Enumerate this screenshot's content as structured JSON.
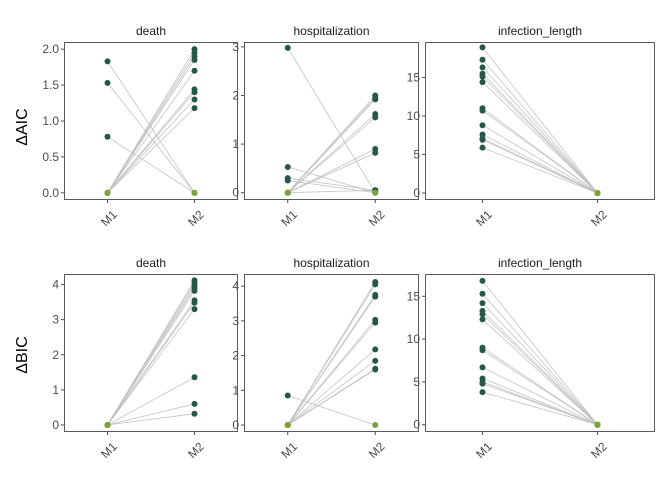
{
  "colors": {
    "selected": "#26574a",
    "zero": "#7aa43a",
    "line": "#bfbfbf",
    "panel_border": "#595959",
    "axis_text": "#4d4d4d"
  },
  "chart_data": [
    {
      "type": "scatter",
      "title": "death",
      "ylabel": "ΔAIC",
      "categories": [
        "M1",
        "M2"
      ],
      "ylim": [
        -0.1,
        2.1
      ],
      "yticks": [
        0.0,
        0.5,
        1.0,
        1.5,
        2.0
      ],
      "ytick_labels": [
        "0.0",
        "0.5",
        "1.0",
        "1.5",
        "2.0"
      ],
      "grid": false,
      "pairs": [
        [
          1.83,
          0
        ],
        [
          1.53,
          0
        ],
        [
          0.78,
          0
        ],
        [
          0,
          2.0
        ],
        [
          0,
          1.95
        ],
        [
          0,
          1.9
        ],
        [
          0,
          1.85
        ],
        [
          0,
          1.7
        ],
        [
          0,
          1.44
        ],
        [
          0,
          1.4
        ],
        [
          0,
          1.3
        ],
        [
          0,
          1.18
        ]
      ]
    },
    {
      "type": "scatter",
      "title": "hospitalization",
      "ylabel": "",
      "categories": [
        "M1",
        "M2"
      ],
      "ylim": [
        -0.15,
        3.1
      ],
      "yticks": [
        0,
        1,
        2,
        3
      ],
      "ytick_labels": [
        "0",
        "1",
        "2",
        "3"
      ],
      "grid": false,
      "pairs": [
        [
          2.98,
          0
        ],
        [
          0.53,
          0
        ],
        [
          0.3,
          0.05
        ],
        [
          0.25,
          0
        ],
        [
          0,
          2.0
        ],
        [
          0,
          1.95
        ],
        [
          0,
          1.92
        ],
        [
          0,
          1.62
        ],
        [
          0,
          1.55
        ],
        [
          0,
          0.9
        ],
        [
          0,
          0.82
        ],
        [
          0,
          0.05
        ]
      ]
    },
    {
      "type": "scatter",
      "title": "infection_length",
      "ylabel": "",
      "categories": [
        "M1",
        "M2"
      ],
      "ylim": [
        -0.9,
        19.6
      ],
      "yticks": [
        0,
        5,
        10,
        15
      ],
      "ytick_labels": [
        "0",
        "5",
        "10",
        "15"
      ],
      "grid": false,
      "pairs": [
        [
          18.9,
          0
        ],
        [
          17.3,
          0
        ],
        [
          16.3,
          0
        ],
        [
          15.5,
          0
        ],
        [
          15.1,
          0
        ],
        [
          14.4,
          0
        ],
        [
          11.0,
          0
        ],
        [
          10.7,
          0
        ],
        [
          8.8,
          0
        ],
        [
          7.6,
          0
        ],
        [
          7.1,
          0
        ],
        [
          6.9,
          0
        ],
        [
          5.9,
          0
        ]
      ]
    },
    {
      "type": "scatter",
      "title": "death",
      "ylabel": "ΔBIC",
      "categories": [
        "M1",
        "M2"
      ],
      "ylim": [
        -0.2,
        4.3
      ],
      "yticks": [
        0,
        1,
        2,
        3,
        4
      ],
      "ytick_labels": [
        "0",
        "1",
        "2",
        "3",
        "4"
      ],
      "grid": false,
      "pairs": [
        [
          0,
          4.12
        ],
        [
          0,
          4.06
        ],
        [
          0,
          3.98
        ],
        [
          0,
          3.9
        ],
        [
          0,
          3.82
        ],
        [
          0,
          3.55
        ],
        [
          0,
          3.48
        ],
        [
          0,
          3.3
        ],
        [
          0,
          1.36
        ],
        [
          0,
          0.6
        ],
        [
          0,
          0.32
        ]
      ]
    },
    {
      "type": "scatter",
      "title": "hospitalization",
      "ylabel": "",
      "categories": [
        "M1",
        "M2"
      ],
      "ylim": [
        -0.2,
        4.35
      ],
      "yticks": [
        0,
        1,
        2,
        3,
        4
      ],
      "ytick_labels": [
        "0",
        "1",
        "2",
        "3",
        "4"
      ],
      "grid": false,
      "pairs": [
        [
          0.85,
          0
        ],
        [
          0,
          4.12
        ],
        [
          0,
          4.05
        ],
        [
          0,
          3.75
        ],
        [
          0,
          3.7
        ],
        [
          0,
          3.03
        ],
        [
          0,
          2.95
        ],
        [
          0,
          2.18
        ],
        [
          0,
          1.85
        ],
        [
          0,
          1.62
        ],
        [
          0,
          1.6
        ]
      ]
    },
    {
      "type": "scatter",
      "title": "infection_length",
      "ylabel": "",
      "categories": [
        "M1",
        "M2"
      ],
      "ylim": [
        -0.85,
        17.6
      ],
      "yticks": [
        0,
        5,
        10,
        15
      ],
      "ytick_labels": [
        "0",
        "5",
        "10",
        "15"
      ],
      "grid": false,
      "pairs": [
        [
          16.8,
          0
        ],
        [
          15.3,
          0
        ],
        [
          14.2,
          0
        ],
        [
          13.3,
          0
        ],
        [
          12.9,
          0
        ],
        [
          12.3,
          0
        ],
        [
          9.0,
          0
        ],
        [
          8.7,
          0
        ],
        [
          6.7,
          0
        ],
        [
          5.4,
          0
        ],
        [
          5.0,
          0
        ],
        [
          4.8,
          0
        ],
        [
          3.8,
          0
        ]
      ]
    }
  ]
}
